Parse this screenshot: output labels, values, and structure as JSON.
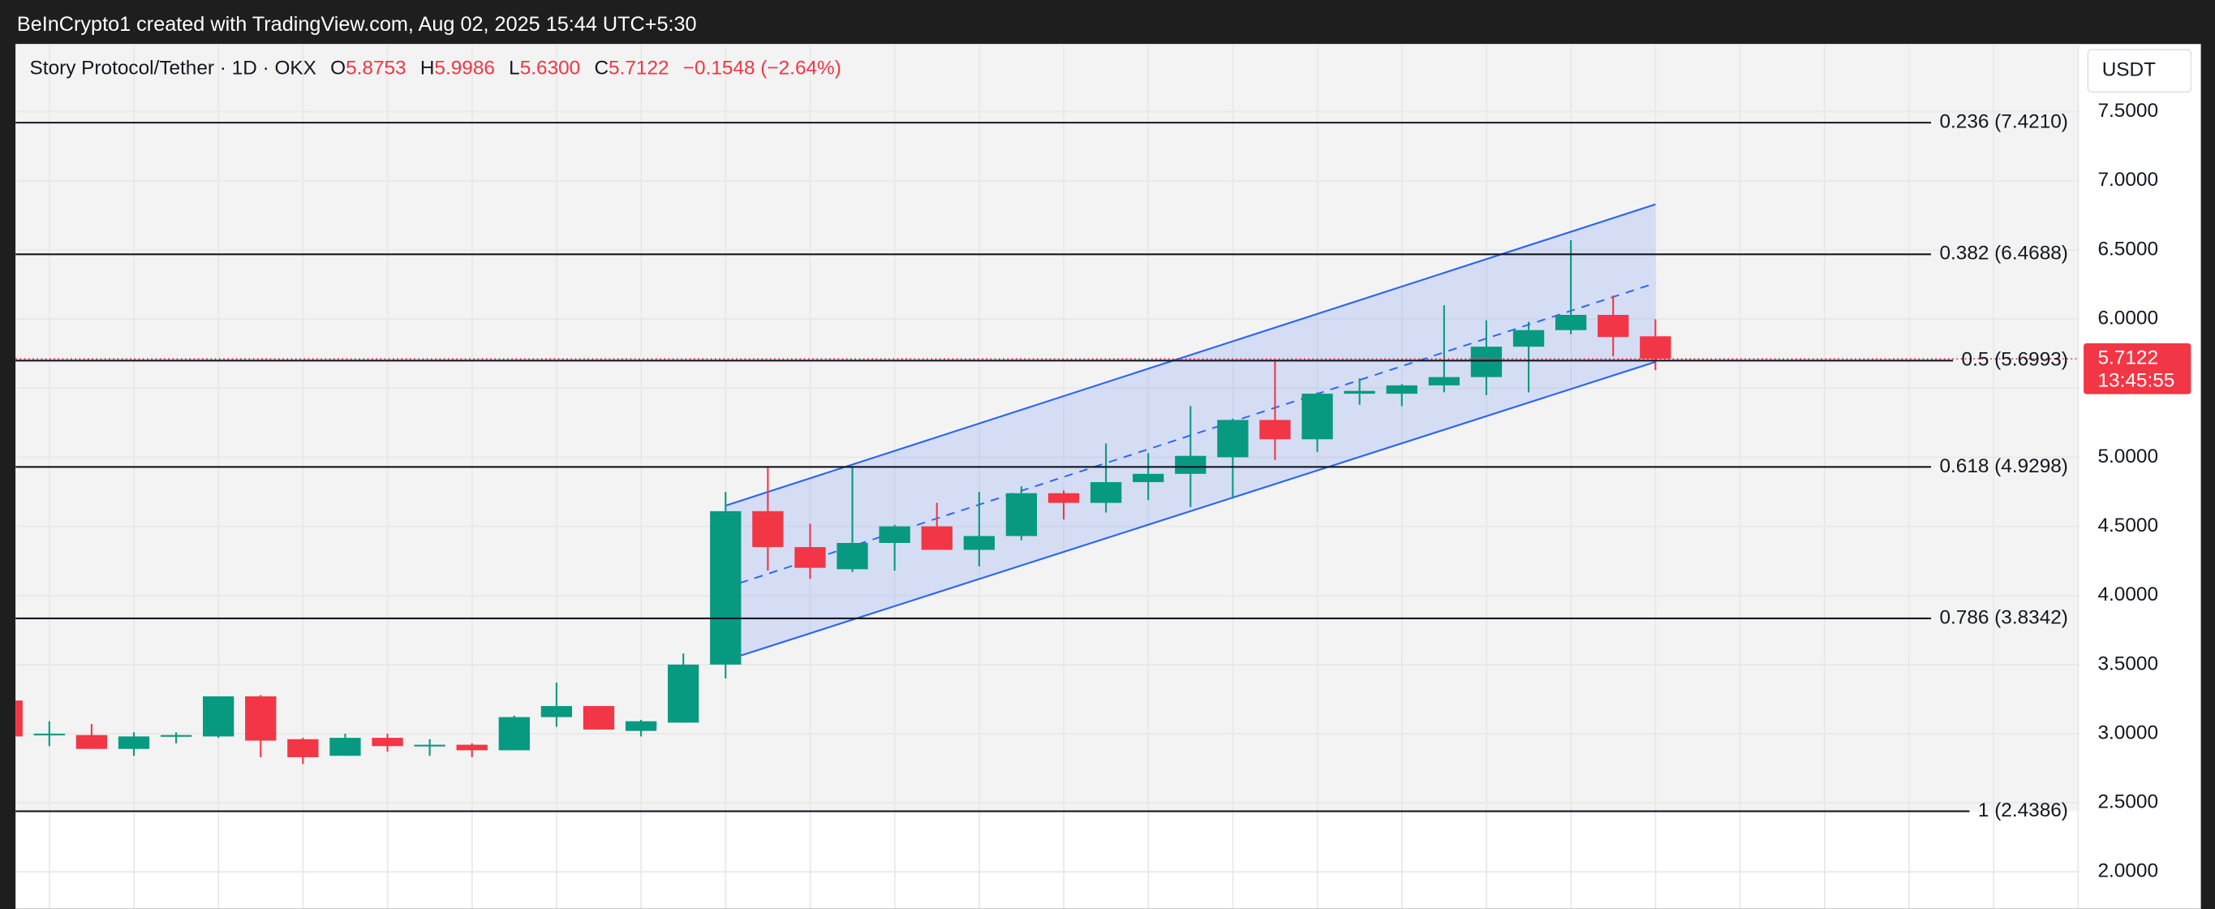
{
  "header": {
    "caption": "BeInCrypto1 created with TradingView.com, Aug 02, 2025 15:44 UTC+5:30"
  },
  "chart_data": {
    "type": "candlestick",
    "title": "Story Protocol/Tether · 1D · OKX",
    "legend": {
      "open_key": "O",
      "open_label": "5.8753",
      "high_key": "H",
      "high_label": "5.9986",
      "low_key": "L",
      "low_label": "5.6300",
      "close_key": "C",
      "close_label": "5.7122",
      "change_label": "−0.1548 (−2.64%)"
    },
    "currency": "USDT",
    "up_color": "#089981",
    "down_color": "#f23645",
    "categories": [
      null,
      null,
      null,
      null,
      null,
      null,
      null,
      null,
      null,
      null,
      null,
      null,
      null,
      null,
      null,
      null,
      null,
      null,
      null,
      null,
      null,
      null,
      null,
      null,
      null,
      null,
      null,
      null,
      null,
      null,
      null,
      null,
      null,
      null,
      null,
      null,
      null,
      null,
      null,
      null
    ],
    "open": [
      3.24,
      2.99,
      2.99,
      2.89,
      2.98,
      2.98,
      3.27,
      2.96,
      2.84,
      2.97,
      2.92,
      2.92,
      2.88,
      3.12,
      3.2,
      3.02,
      3.08,
      3.5,
      4.61,
      4.35,
      4.19,
      4.38,
      4.5,
      4.33,
      4.43,
      4.74,
      4.67,
      4.82,
      4.88,
      5.0,
      5.27,
      5.13,
      5.46,
      5.46,
      5.52,
      5.58,
      5.8,
      5.92,
      6.03,
      5.8753
    ],
    "high": [
      3.24,
      3.09,
      3.07,
      3.01,
      3.01,
      3.27,
      3.28,
      2.97,
      3.0,
      3.0,
      2.96,
      2.93,
      3.13,
      3.37,
      3.2,
      3.1,
      3.58,
      4.75,
      4.93,
      4.52,
      4.93,
      4.51,
      4.67,
      4.75,
      4.79,
      4.76,
      5.1,
      5.03,
      5.37,
      5.28,
      5.7,
      5.47,
      5.57,
      5.53,
      6.1,
      5.99,
      5.98,
      6.57,
      6.17,
      5.9986
    ],
    "low": [
      2.98,
      2.91,
      2.89,
      2.84,
      2.93,
      2.97,
      2.83,
      2.78,
      2.84,
      2.87,
      2.84,
      2.83,
      2.88,
      3.05,
      3.03,
      2.98,
      3.08,
      3.4,
      4.18,
      4.12,
      4.17,
      4.18,
      4.33,
      4.21,
      4.4,
      4.55,
      4.6,
      4.69,
      4.64,
      4.7,
      4.98,
      5.04,
      5.38,
      5.37,
      5.47,
      5.45,
      5.47,
      5.89,
      5.73,
      5.63
    ],
    "close": [
      2.98,
      3.0,
      2.89,
      2.98,
      2.99,
      3.27,
      2.95,
      2.83,
      2.97,
      2.91,
      2.92,
      2.88,
      3.12,
      3.2,
      3.03,
      3.09,
      3.5,
      4.61,
      4.35,
      4.2,
      4.38,
      4.5,
      4.33,
      4.43,
      4.74,
      4.67,
      4.82,
      4.88,
      5.01,
      5.27,
      5.13,
      5.46,
      5.48,
      5.52,
      5.58,
      5.8,
      5.92,
      6.03,
      5.87,
      5.7122
    ],
    "ylim": [
      1.733,
      7.99
    ],
    "yticks": [
      {
        "value": 2.0,
        "label": "2.0000"
      },
      {
        "value": 2.5,
        "label": "2.5000"
      },
      {
        "value": 3.0,
        "label": "3.0000"
      },
      {
        "value": 3.5,
        "label": "3.5000"
      },
      {
        "value": 4.0,
        "label": "4.0000"
      },
      {
        "value": 4.5,
        "label": "4.5000"
      },
      {
        "value": 5.0,
        "label": "5.0000"
      },
      {
        "value": 5.5,
        "label": "5.5000"
      },
      {
        "value": 6.0,
        "label": "6.0000"
      },
      {
        "value": 6.5,
        "label": "6.5000"
      },
      {
        "value": 7.0,
        "label": "7.0000"
      },
      {
        "value": 7.5,
        "label": "7.5000"
      }
    ],
    "grid": true,
    "fib_levels": [
      {
        "value": 7.421,
        "label": "0.236 (7.4210)"
      },
      {
        "value": 6.4688,
        "label": "0.382 (6.4688)"
      },
      {
        "value": 5.6993,
        "label": "0.5 (5.6993)"
      },
      {
        "value": 4.9298,
        "label": "0.618 (4.9298)"
      },
      {
        "value": 3.8342,
        "label": "0.786 (3.8342)"
      },
      {
        "value": 2.4386,
        "label": "1 (2.4386)"
      }
    ],
    "channel": {
      "start": 17,
      "end": 39,
      "upper": [
        4.65,
        6.83
      ],
      "lower": [
        3.53,
        5.69
      ],
      "color": "#2962ff"
    },
    "last_price": {
      "value": 5.7122,
      "label": "5.7122",
      "countdown": "13:45:55"
    }
  }
}
